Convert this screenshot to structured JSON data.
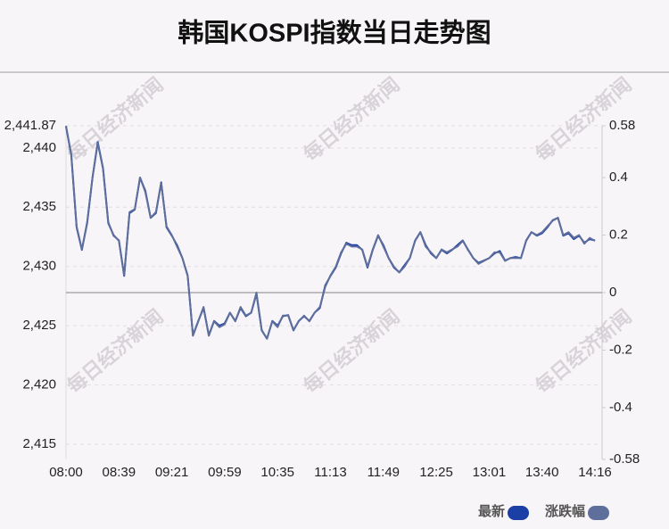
{
  "chart_data": {
    "type": "line",
    "title": "韩国KOSPI指数当日走势图",
    "watermark": "每日经济新闻",
    "categories": [
      "08:00",
      null,
      null,
      null,
      null,
      null,
      null,
      null,
      null,
      null,
      "08:39",
      null,
      null,
      null,
      null,
      null,
      null,
      null,
      null,
      null,
      "09:21",
      null,
      null,
      null,
      null,
      null,
      null,
      null,
      null,
      null,
      "09:59",
      null,
      null,
      null,
      null,
      null,
      null,
      null,
      null,
      null,
      "10:35",
      null,
      null,
      null,
      null,
      null,
      null,
      null,
      null,
      null,
      "11:13",
      null,
      null,
      null,
      null,
      null,
      null,
      null,
      null,
      null,
      "11:49",
      null,
      null,
      null,
      null,
      null,
      null,
      null,
      null,
      null,
      "12:25",
      null,
      null,
      null,
      null,
      null,
      null,
      null,
      null,
      null,
      "13:01",
      null,
      null,
      null,
      null,
      null,
      null,
      null,
      null,
      null,
      "13:40",
      null,
      null,
      null,
      null,
      null,
      null,
      null,
      null,
      null,
      "14:16"
    ],
    "series": [
      {
        "name": "最新",
        "color": "#1c3fa6",
        "values": [
          2441.8,
          2439.4,
          2433.3,
          2431.4,
          2433.7,
          2437.5,
          2440.5,
          2438.3,
          2433.7,
          2432.6,
          2432.2,
          2429.2,
          2434.5,
          2434.8,
          2437.5,
          2436.4,
          2434.1,
          2434.5,
          2437.1,
          2433.3,
          2432.6,
          2431.8,
          2430.7,
          2429.2,
          2424.2,
          2425.4,
          2426.5,
          2424.2,
          2425.4,
          2425.0,
          2425.2,
          2426.1,
          2425.4,
          2426.5,
          2425.8,
          2426.1,
          2427.7,
          2424.6,
          2423.9,
          2425.4,
          2425.0,
          2425.8,
          2425.9,
          2424.6,
          2425.4,
          2425.8,
          2425.4,
          2426.1,
          2426.5,
          2428.4,
          2429.2,
          2429.9,
          2431.1,
          2432.0,
          2431.8,
          2431.8,
          2431.4,
          2429.9,
          2431.4,
          2432.6,
          2431.8,
          2430.7,
          2429.9,
          2429.5,
          2430.1,
          2430.7,
          2432.2,
          2432.9,
          2431.8,
          2431.1,
          2430.7,
          2431.4,
          2431.1,
          2431.4,
          2431.8,
          2432.2,
          2431.4,
          2430.7,
          2430.3,
          2430.5,
          2430.7,
          2431.1,
          2431.3,
          2430.5,
          2430.7,
          2430.8,
          2430.7,
          2432.2,
          2432.9,
          2432.6,
          2432.8,
          2433.3,
          2433.9,
          2434.1,
          2432.6,
          2432.8,
          2432.3,
          2432.6,
          2432.0,
          2432.3,
          2432.2
        ]
      },
      {
        "name": "涨跌幅",
        "color": "#5f6f9c",
        "axis": "y2",
        "values": [
          0.58,
          0.48,
          0.23,
          0.15,
          0.24,
          0.4,
          0.52,
          0.43,
          0.24,
          0.2,
          0.18,
          0.06,
          0.28,
          0.29,
          0.4,
          0.35,
          0.26,
          0.28,
          0.38,
          0.23,
          0.2,
          0.16,
          0.12,
          0.06,
          -0.15,
          -0.1,
          -0.05,
          -0.15,
          -0.1,
          -0.12,
          -0.11,
          -0.07,
          -0.1,
          -0.05,
          -0.08,
          -0.07,
          0.0,
          -0.13,
          -0.16,
          -0.1,
          -0.12,
          -0.08,
          -0.08,
          -0.13,
          -0.1,
          -0.08,
          -0.1,
          -0.07,
          -0.05,
          0.02,
          0.06,
          0.09,
          0.14,
          0.17,
          0.16,
          0.16,
          0.15,
          0.09,
          0.15,
          0.2,
          0.16,
          0.12,
          0.09,
          0.07,
          0.09,
          0.12,
          0.18,
          0.21,
          0.16,
          0.14,
          0.12,
          0.15,
          0.14,
          0.15,
          0.16,
          0.18,
          0.15,
          0.12,
          0.1,
          0.11,
          0.12,
          0.14,
          0.14,
          0.11,
          0.12,
          0.12,
          0.12,
          0.18,
          0.21,
          0.2,
          0.21,
          0.23,
          0.25,
          0.26,
          0.2,
          0.21,
          0.19,
          0.2,
          0.17,
          0.19,
          0.18
        ]
      }
    ],
    "ylim": [
      2413.72,
      2441.87
    ],
    "yticks": [
      {
        "value": 2441.87,
        "label": "2,441.87"
      },
      {
        "value": 2440,
        "label": "2,440"
      },
      {
        "value": 2435,
        "label": "2,435"
      },
      {
        "value": 2430,
        "label": "2,430"
      },
      {
        "value": 2425,
        "label": "2,425"
      },
      {
        "value": 2420,
        "label": "2,420"
      },
      {
        "value": 2415,
        "label": "2,415"
      }
    ],
    "y2lim": [
      -0.58,
      0.58
    ],
    "y2ticks": [
      0.58,
      0.4,
      0.2,
      0,
      -0.2,
      -0.4,
      -0.58
    ],
    "grid": true
  }
}
